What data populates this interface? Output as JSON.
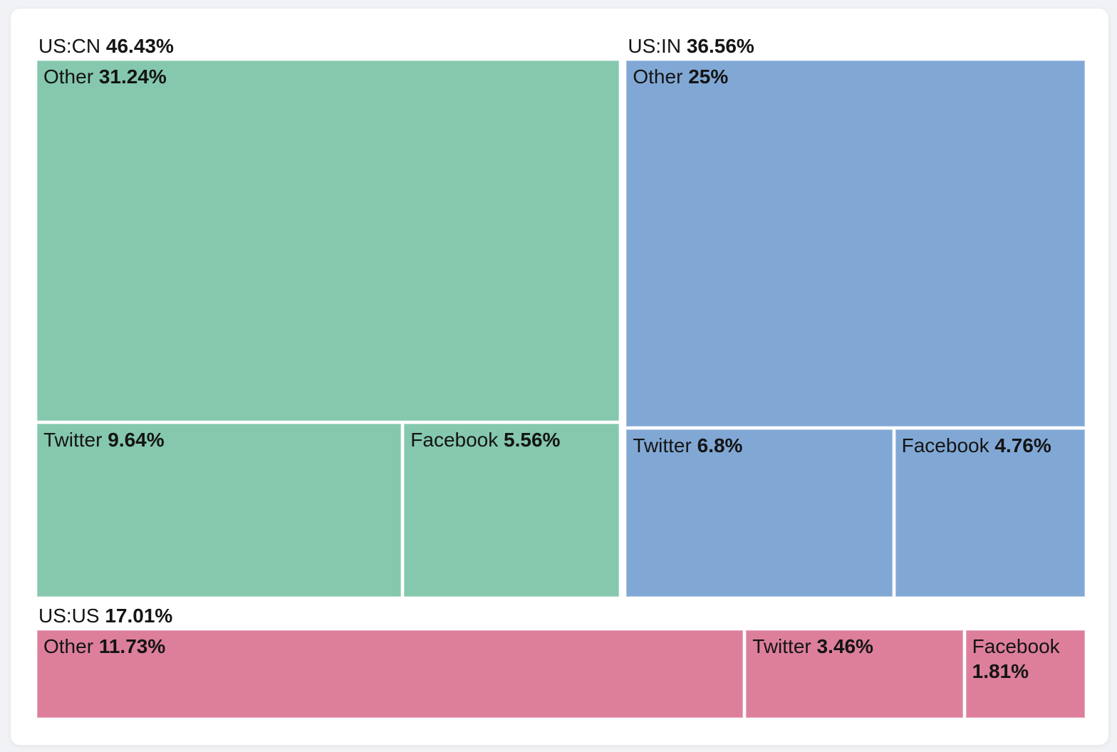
{
  "chart_data": {
    "type": "treemap",
    "title": "",
    "legend_position": "none",
    "page_background_color": "#f1f2f5",
    "card_background_color": "#ffffff",
    "label_text_color": "#141414",
    "groups": [
      {
        "name": "US:CN",
        "value": 46.43,
        "value_label": "46.43%",
        "color": "#85c8ad",
        "layout": "stacked",
        "children": [
          {
            "name": "Other",
            "value": 31.24,
            "value_label": "31.24%"
          },
          {
            "name": "Twitter",
            "value": 9.64,
            "value_label": "9.64%"
          },
          {
            "name": "Facebook",
            "value": 5.56,
            "value_label": "5.56%"
          }
        ]
      },
      {
        "name": "US:IN",
        "value": 36.56,
        "value_label": "36.56%",
        "color": "#81a8d5",
        "layout": "stacked",
        "children": [
          {
            "name": "Other",
            "value": 25,
            "value_label": "25%"
          },
          {
            "name": "Twitter",
            "value": 6.8,
            "value_label": "6.8%"
          },
          {
            "name": "Facebook",
            "value": 4.76,
            "value_label": "4.76%"
          }
        ]
      },
      {
        "name": "US:US",
        "value": 17.01,
        "value_label": "17.01%",
        "color": "#dd7f9b",
        "layout": "row",
        "children": [
          {
            "name": "Other",
            "value": 11.73,
            "value_label": "11.73%"
          },
          {
            "name": "Twitter",
            "value": 3.46,
            "value_label": "3.46%"
          },
          {
            "name": "Facebook",
            "value": 1.81,
            "value_label": "1.81%"
          }
        ]
      }
    ],
    "rows": [
      [
        0,
        1
      ],
      [
        2
      ]
    ]
  }
}
